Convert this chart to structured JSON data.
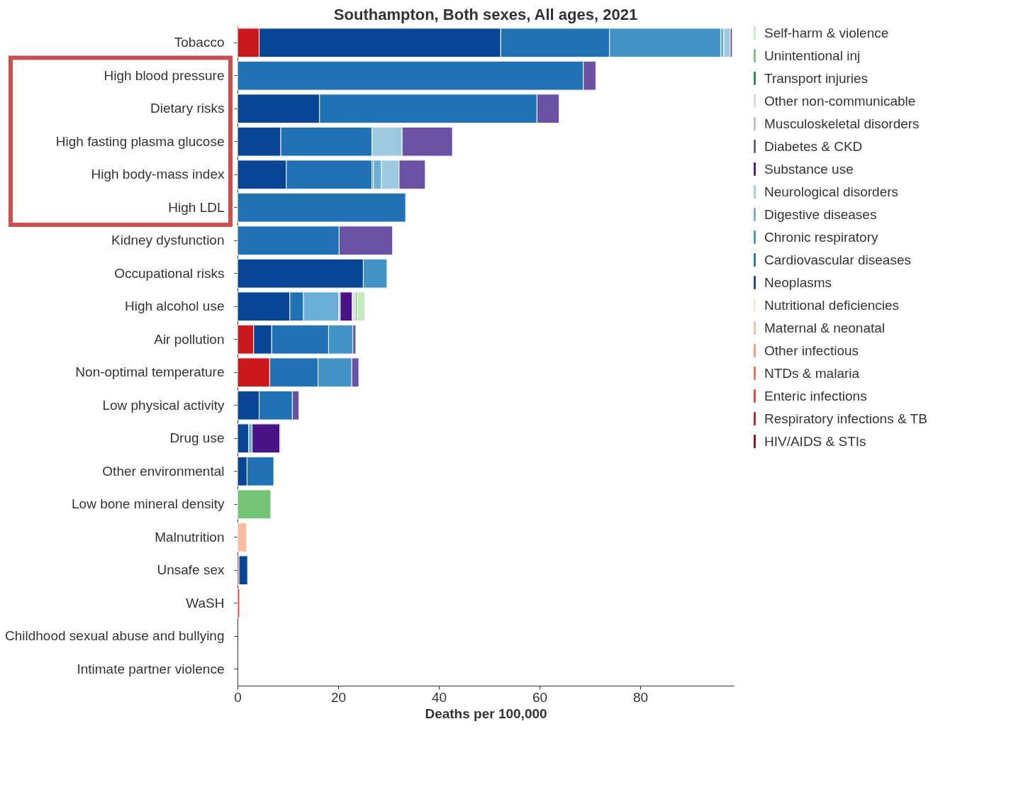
{
  "chart_data": {
    "type": "bar",
    "orientation": "horizontal",
    "stacked": true,
    "title": "Southampton, Both sexes, All ages, 2021",
    "xlabel": "Deaths per 100,000",
    "categories": [
      "Tobacco",
      "High blood pressure",
      "Dietary risks",
      "High fasting plasma glucose",
      "High body-mass index",
      "High LDL",
      "Kidney dysfunction",
      "Occupational risks",
      "High alcohol use",
      "Air pollution",
      "Non-optimal temperature",
      "Low physical activity",
      "Drug use",
      "Other environmental",
      "Low bone mineral density",
      "Malnutrition",
      "Unsafe sex",
      "WaSH",
      "Childhood sexual abuse and bullying",
      "Intimate partner violence"
    ],
    "xlim": [
      0,
      98.6
    ],
    "xticks": [
      0,
      20,
      40,
      60,
      80
    ],
    "grid": false,
    "legend": "right",
    "series": [
      {
        "name": "HIV/AIDS & STIs",
        "color": "#99000d",
        "values": [
          null,
          null,
          null,
          null,
          null,
          null,
          null,
          null,
          null,
          null,
          null,
          null,
          null,
          null,
          null,
          null,
          0.3,
          null,
          null,
          null
        ]
      },
      {
        "name": "Respiratory infections & TB",
        "color": "#cb181d",
        "values": [
          4.3,
          null,
          null,
          null,
          null,
          null,
          null,
          null,
          null,
          3.2,
          6.4,
          null,
          null,
          null,
          null,
          null,
          null,
          null,
          null,
          null
        ]
      },
      {
        "name": "Enteric infections",
        "color": "#ef3b2c",
        "values": [
          null,
          null,
          null,
          null,
          null,
          null,
          null,
          null,
          null,
          null,
          null,
          null,
          null,
          null,
          null,
          null,
          null,
          0.4,
          null,
          null
        ]
      },
      {
        "name": "NTDs & malaria",
        "color": "#fb6a4a",
        "values": [
          null,
          null,
          null,
          null,
          null,
          null,
          null,
          null,
          null,
          null,
          null,
          null,
          null,
          null,
          null,
          null,
          null,
          null,
          null,
          null
        ]
      },
      {
        "name": "Other infectious",
        "color": "#fc9272",
        "values": [
          null,
          null,
          null,
          null,
          null,
          null,
          null,
          null,
          null,
          null,
          null,
          null,
          null,
          null,
          null,
          null,
          null,
          null,
          null,
          null
        ]
      },
      {
        "name": "Maternal & neonatal",
        "color": "#fcbba1",
        "values": [
          null,
          null,
          null,
          null,
          null,
          null,
          null,
          null,
          null,
          null,
          null,
          null,
          null,
          null,
          null,
          1.8,
          null,
          null,
          null,
          null
        ]
      },
      {
        "name": "Nutritional deficiencies",
        "color": "#fee0d2",
        "values": [
          null,
          null,
          null,
          null,
          null,
          null,
          null,
          null,
          null,
          null,
          null,
          null,
          null,
          null,
          null,
          null,
          null,
          null,
          null,
          null
        ]
      },
      {
        "name": "Neoplasms",
        "color": "#084594",
        "values": [
          48.0,
          null,
          16.3,
          8.6,
          9.7,
          null,
          null,
          25.0,
          10.4,
          3.6,
          null,
          4.3,
          2.2,
          1.9,
          null,
          null,
          1.7,
          null,
          null,
          null
        ]
      },
      {
        "name": "Cardiovascular diseases",
        "color": "#2171b5",
        "values": [
          21.6,
          68.7,
          43.2,
          18.1,
          17.0,
          33.4,
          20.2,
          null,
          2.7,
          11.3,
          9.6,
          6.6,
          null,
          5.3,
          null,
          null,
          null,
          null,
          null,
          null
        ]
      },
      {
        "name": "Chronic respiratory",
        "color": "#4292c6",
        "values": [
          22.1,
          null,
          null,
          null,
          0.3,
          null,
          null,
          4.7,
          null,
          4.8,
          6.7,
          null,
          null,
          null,
          null,
          null,
          null,
          null,
          null,
          null
        ]
      },
      {
        "name": "Digestive diseases",
        "color": "#6baed6",
        "values": [
          0.6,
          null,
          null,
          null,
          1.6,
          null,
          null,
          null,
          7.0,
          null,
          null,
          null,
          0.7,
          null,
          null,
          null,
          null,
          null,
          null,
          null
        ]
      },
      {
        "name": "Neurological disorders",
        "color": "#9ecae1",
        "values": [
          1.3,
          null,
          null,
          6.0,
          3.5,
          null,
          null,
          null,
          0.3,
          null,
          null,
          null,
          null,
          null,
          null,
          null,
          null,
          null,
          null,
          null
        ]
      },
      {
        "name": "Substance use",
        "color": "#4a1486",
        "values": [
          null,
          null,
          null,
          null,
          null,
          null,
          null,
          null,
          2.4,
          null,
          null,
          null,
          5.5,
          null,
          null,
          null,
          null,
          null,
          null,
          null
        ]
      },
      {
        "name": "Diabetes & CKD",
        "color": "#6a51a3",
        "values": [
          0.4,
          2.5,
          4.4,
          10.0,
          5.2,
          null,
          10.6,
          null,
          null,
          0.6,
          1.4,
          1.3,
          null,
          null,
          null,
          null,
          null,
          null,
          null,
          null
        ]
      },
      {
        "name": "Musculoskeletal disorders",
        "color": "#bcbddc",
        "values": [
          null,
          null,
          null,
          null,
          null,
          null,
          null,
          null,
          null,
          null,
          null,
          null,
          null,
          null,
          null,
          null,
          null,
          null,
          null,
          null
        ]
      },
      {
        "name": "Other non-communicable",
        "color": "#dadaeb",
        "values": [
          null,
          null,
          null,
          null,
          null,
          null,
          null,
          null,
          0.6,
          null,
          null,
          null,
          null,
          null,
          null,
          null,
          null,
          null,
          null,
          null
        ]
      },
      {
        "name": "Transport injuries",
        "color": "#238b45",
        "values": [
          null,
          null,
          null,
          null,
          null,
          null,
          null,
          null,
          null,
          null,
          null,
          null,
          null,
          null,
          null,
          null,
          null,
          null,
          null,
          null
        ]
      },
      {
        "name": "Unintentional inj",
        "color": "#74c476",
        "values": [
          null,
          null,
          null,
          null,
          null,
          null,
          null,
          null,
          0.4,
          null,
          null,
          null,
          null,
          null,
          6.6,
          null,
          null,
          null,
          null,
          null
        ]
      },
      {
        "name": "Self-harm & violence",
        "color": "#c7e9c0",
        "values": [
          null,
          null,
          null,
          null,
          null,
          null,
          null,
          null,
          1.5,
          null,
          null,
          null,
          0.3,
          null,
          null,
          null,
          null,
          null,
          null,
          null
        ]
      }
    ]
  }
}
